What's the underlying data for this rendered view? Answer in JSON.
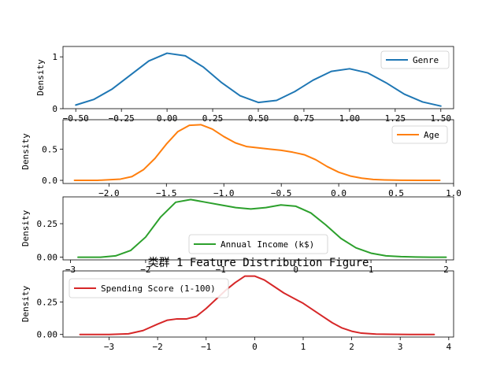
{
  "figure": {
    "title": "类群 1 Feature Distribution Figure"
  },
  "chart_data": [
    {
      "type": "line",
      "ylabel": "Density",
      "xlim": [
        -0.57,
        1.57
      ],
      "ylim": [
        0,
        1.2
      ],
      "xticks": [
        -0.5,
        -0.25,
        0.0,
        0.25,
        0.5,
        0.75,
        1.0,
        1.25,
        1.5
      ],
      "xtick_labels": [
        "−0.50",
        "−0.25",
        "0.00",
        "0.25",
        "0.50",
        "0.75",
        "1.00",
        "1.25",
        "1.50"
      ],
      "yticks": [
        0,
        1
      ],
      "ytick_labels": [
        "0",
        "1"
      ],
      "legend_position": "upper right",
      "series": [
        {
          "name": "Genre",
          "color": "#1f77b4",
          "x": [
            -0.5,
            -0.4,
            -0.3,
            -0.2,
            -0.1,
            0.0,
            0.1,
            0.2,
            0.3,
            0.4,
            0.5,
            0.6,
            0.7,
            0.8,
            0.9,
            1.0,
            1.1,
            1.2,
            1.3,
            1.4,
            1.5
          ],
          "y": [
            0.07,
            0.18,
            0.38,
            0.65,
            0.92,
            1.07,
            1.02,
            0.8,
            0.5,
            0.25,
            0.12,
            0.16,
            0.33,
            0.55,
            0.72,
            0.77,
            0.69,
            0.5,
            0.28,
            0.13,
            0.05
          ]
        }
      ]
    },
    {
      "type": "line",
      "ylabel": "Density",
      "xlim": [
        -2.4,
        1.0
      ],
      "ylim": [
        -0.05,
        0.97
      ],
      "xticks": [
        -2.0,
        -1.5,
        -1.0,
        -0.5,
        0.0,
        0.5,
        1.0
      ],
      "xtick_labels": [
        "−2.0",
        "−1.5",
        "−1.0",
        "−0.5",
        "0.0",
        "0.5",
        "1.0"
      ],
      "yticks": [
        0.0,
        0.5
      ],
      "ytick_labels": [
        "0.0",
        "0.5"
      ],
      "legend_position": "upper right",
      "series": [
        {
          "name": "Age",
          "color": "#ff7f0e",
          "x": [
            -2.3,
            -2.1,
            -1.9,
            -1.8,
            -1.7,
            -1.6,
            -1.5,
            -1.4,
            -1.3,
            -1.2,
            -1.1,
            -1.0,
            -0.9,
            -0.8,
            -0.7,
            -0.6,
            -0.5,
            -0.4,
            -0.3,
            -0.2,
            -0.1,
            0.0,
            0.1,
            0.2,
            0.3,
            0.4,
            0.5,
            0.7,
            0.88
          ],
          "y": [
            0.0,
            0.0,
            0.02,
            0.06,
            0.17,
            0.35,
            0.58,
            0.78,
            0.88,
            0.89,
            0.82,
            0.7,
            0.6,
            0.54,
            0.52,
            0.5,
            0.48,
            0.45,
            0.41,
            0.33,
            0.22,
            0.13,
            0.07,
            0.035,
            0.015,
            0.007,
            0.003,
            0.001,
            0.0
          ]
        }
      ]
    },
    {
      "type": "line",
      "ylabel": "Density",
      "xlim": [
        -3.1,
        2.1
      ],
      "ylim": [
        -0.02,
        0.45
      ],
      "xticks": [
        -3,
        -2,
        -1,
        0,
        1,
        2
      ],
      "xtick_labels": [
        "−3",
        "−2",
        "−1",
        "0",
        "1",
        "2"
      ],
      "yticks": [
        0.0,
        0.25
      ],
      "ytick_labels": [
        "0.00",
        "0.25"
      ],
      "legend_position": "lower center",
      "series": [
        {
          "name": "Annual Income (k$)",
          "color": "#2ca02c",
          "x": [
            -2.9,
            -2.6,
            -2.4,
            -2.2,
            -2.0,
            -1.8,
            -1.6,
            -1.4,
            -1.2,
            -1.0,
            -0.8,
            -0.6,
            -0.4,
            -0.2,
            0.0,
            0.2,
            0.4,
            0.6,
            0.8,
            1.0,
            1.2,
            1.4,
            1.6,
            1.8,
            2.0
          ],
          "y": [
            0.0,
            0.0,
            0.01,
            0.05,
            0.15,
            0.3,
            0.41,
            0.43,
            0.41,
            0.39,
            0.37,
            0.36,
            0.37,
            0.39,
            0.38,
            0.33,
            0.24,
            0.14,
            0.07,
            0.03,
            0.01,
            0.004,
            0.001,
            0.0,
            0.0
          ]
        }
      ]
    },
    {
      "type": "line",
      "ylabel": "Density",
      "xlim": [
        -3.95,
        4.1
      ],
      "ylim": [
        -0.02,
        0.49
      ],
      "xticks": [
        -3,
        -2,
        -1,
        0,
        1,
        2,
        3,
        4
      ],
      "xtick_labels": [
        "−3",
        "−2",
        "−1",
        "0",
        "1",
        "2",
        "3",
        "4"
      ],
      "yticks": [
        0.0,
        0.25
      ],
      "ytick_labels": [
        "0.00",
        "0.25"
      ],
      "legend_position": "upper left",
      "series": [
        {
          "name": "Spending Score (1-100)",
          "color": "#d62728",
          "x": [
            -3.6,
            -3.0,
            -2.6,
            -2.3,
            -2.0,
            -1.8,
            -1.6,
            -1.4,
            -1.2,
            -1.0,
            -0.8,
            -0.6,
            -0.4,
            -0.2,
            0.0,
            0.2,
            0.4,
            0.6,
            0.8,
            1.0,
            1.2,
            1.4,
            1.6,
            1.8,
            2.0,
            2.2,
            2.5,
            2.8,
            3.2,
            3.7
          ],
          "y": [
            0.0,
            0.0,
            0.005,
            0.03,
            0.08,
            0.11,
            0.12,
            0.12,
            0.14,
            0.2,
            0.27,
            0.34,
            0.4,
            0.45,
            0.45,
            0.42,
            0.37,
            0.32,
            0.28,
            0.24,
            0.19,
            0.14,
            0.09,
            0.05,
            0.025,
            0.01,
            0.003,
            0.001,
            0.0,
            0.0
          ]
        }
      ]
    }
  ]
}
